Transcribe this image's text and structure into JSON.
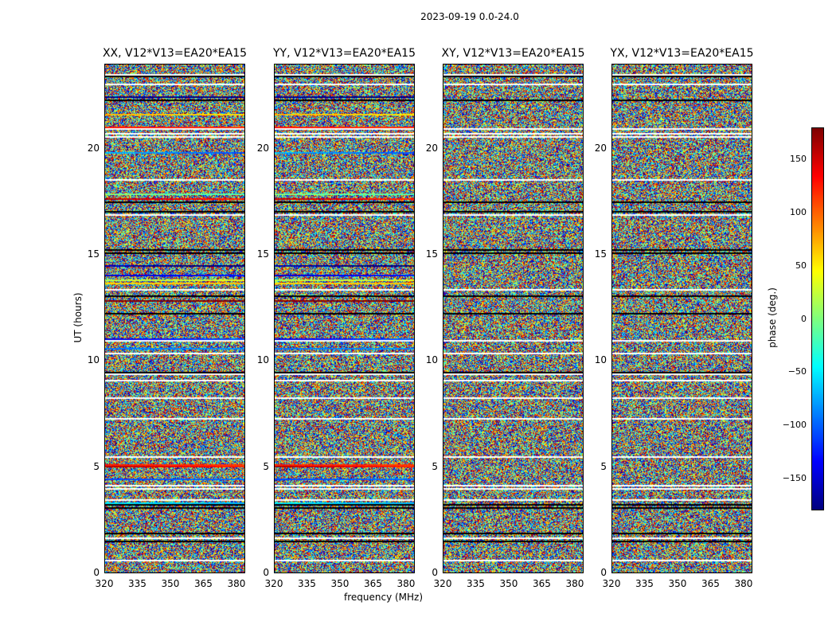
{
  "figure_title": "2023-09-19 0.0-24.0",
  "colormap": [
    "#00007f",
    "#0000ff",
    "#007fff",
    "#00ffff",
    "#7fff7f",
    "#ffff00",
    "#ff7f00",
    "#ff0000",
    "#7f0000"
  ],
  "chart_data": [
    {
      "type": "heatmap",
      "title": "XX, V12*V13=EA20*EA15",
      "xlabel": "",
      "ylabel": "UT (hours)",
      "xlim": [
        320,
        384
      ],
      "ylim": [
        0,
        24
      ],
      "xticks": [
        320,
        335,
        350,
        365,
        380
      ],
      "yticks": [
        0,
        5,
        10,
        15,
        20
      ]
    },
    {
      "type": "heatmap",
      "title": "YY, V12*V13=EA20*EA15",
      "xlabel": "frequency (MHz)",
      "ylabel": "",
      "xlim": [
        320,
        384
      ],
      "ylim": [
        0,
        24
      ],
      "xticks": [
        320,
        335,
        350,
        365,
        380
      ],
      "yticks": [
        0,
        5,
        10,
        15,
        20
      ]
    },
    {
      "type": "heatmap",
      "title": "XY, V12*V13=EA20*EA15",
      "xlabel": "",
      "ylabel": "",
      "xlim": [
        320,
        384
      ],
      "ylim": [
        0,
        24
      ],
      "xticks": [
        320,
        335,
        350,
        365,
        380
      ],
      "yticks": [
        0,
        5,
        10,
        15,
        20
      ]
    },
    {
      "type": "heatmap",
      "title": "YX, V12*V13=EA20*EA15",
      "xlabel": "",
      "ylabel": "",
      "xlim": [
        320,
        384
      ],
      "ylim": [
        0,
        24
      ],
      "xticks": [
        320,
        335,
        350,
        365,
        380
      ],
      "yticks": [
        0,
        5,
        10,
        15,
        20
      ]
    }
  ],
  "colorbar": {
    "label": "phase (deg.)",
    "range": [
      -180,
      180
    ],
    "ticks": [
      150,
      100,
      50,
      0,
      -50,
      -100,
      -150
    ],
    "tick_labels": [
      "150",
      "100",
      "50",
      "0",
      "−50",
      "−100",
      "−150"
    ]
  }
}
